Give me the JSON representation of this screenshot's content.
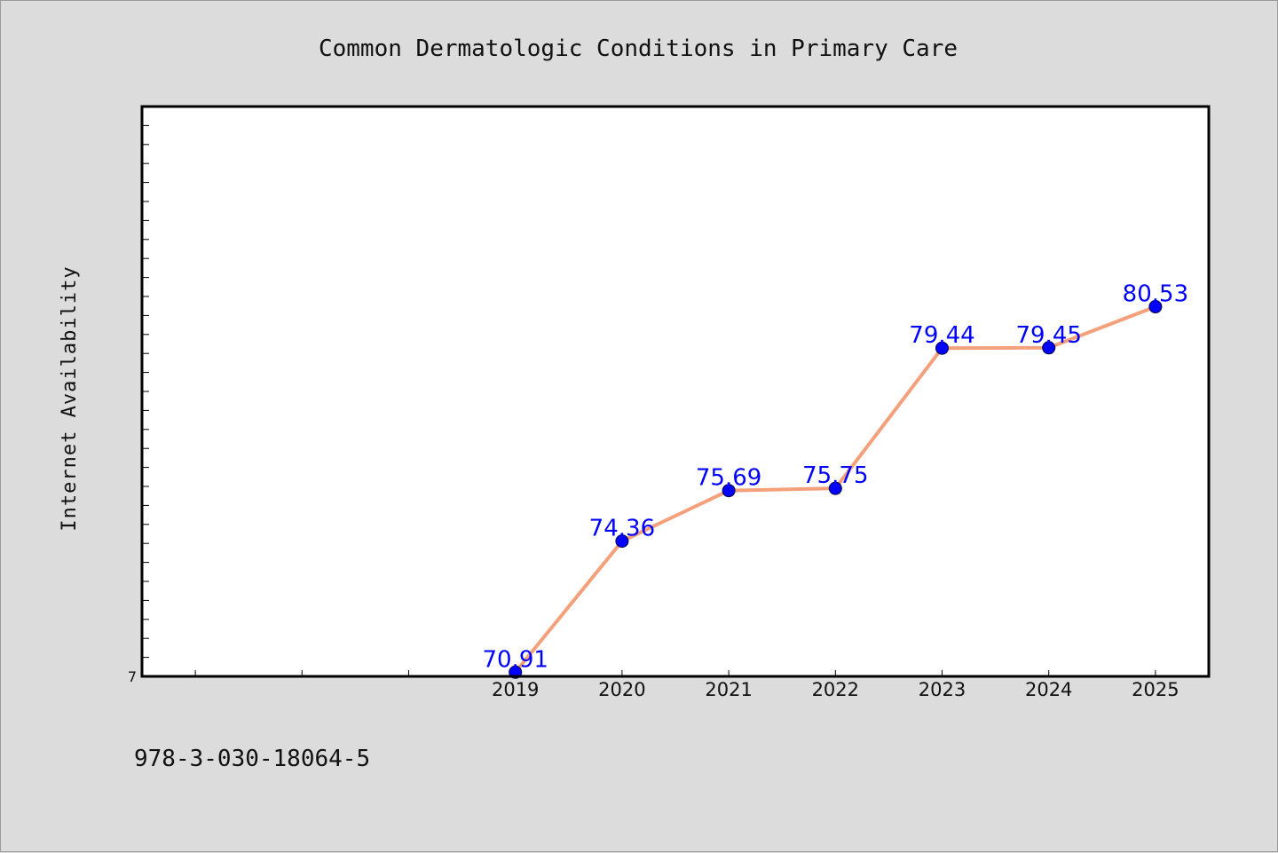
{
  "chart_data": {
    "type": "line",
    "title": "Common Dermatologic Conditions in Primary Care",
    "xlabel": "",
    "ylabel": "Internet Availability",
    "x": [
      2019,
      2020,
      2021,
      2022,
      2023,
      2024,
      2025
    ],
    "series": [
      {
        "values": [
          70.91,
          74.36,
          75.69,
          75.75,
          79.44,
          79.45,
          80.53
        ],
        "labels": [
          "70.91",
          "74.36",
          "75.69",
          "75.75",
          "79.44",
          "79.45",
          "80.53"
        ],
        "line_color": "#f4a07a",
        "marker_color": "#0000ff"
      }
    ],
    "xlim": [
      2015.5,
      2025.5
    ],
    "ylim": [
      70.8,
      85.8
    ],
    "ytick_labels": [
      {
        "value": 70.8,
        "label": "7"
      }
    ],
    "grid": false,
    "legend": "none"
  },
  "footer": {
    "text": "978-3-030-18064-5"
  },
  "colors": {
    "background": "#dcdcdc",
    "plot_background": "#ffffff",
    "line": "#f4a07a",
    "marker": "#0000ff",
    "label": "#0000ff"
  }
}
